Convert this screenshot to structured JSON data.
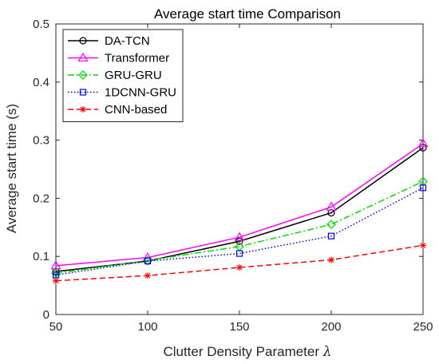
{
  "chart_data": {
    "type": "line",
    "title": "Average start time Comparison",
    "xlabel": "Clutter Density Parameter",
    "xlabel_symbol": "λ",
    "ylabel": "Average start time (s)",
    "x": [
      50,
      100,
      150,
      200,
      250
    ],
    "xlim": [
      50,
      250
    ],
    "ylim": [
      0,
      0.5
    ],
    "xticks": [
      "50",
      "100",
      "150",
      "200",
      "250"
    ],
    "yticks": [
      "0",
      "0.1",
      "0.2",
      "0.3",
      "0.4",
      "0.5"
    ],
    "grid": false,
    "legend_position": "top-left",
    "series": [
      {
        "name": "DA-TCN",
        "values": [
          0.074,
          0.092,
          0.126,
          0.175,
          0.287
        ],
        "color": "#000000",
        "marker": "circle",
        "line_style": "solid"
      },
      {
        "name": "Transformer",
        "values": [
          0.084,
          0.098,
          0.133,
          0.185,
          0.294
        ],
        "color": "#ff00ff",
        "marker": "triangle",
        "line_style": "solid"
      },
      {
        "name": "GRU-GRU",
        "values": [
          0.071,
          0.093,
          0.117,
          0.155,
          0.229
        ],
        "color": "#00dd00",
        "marker": "diamond",
        "line_style": "dash-dot"
      },
      {
        "name": "1DCNN-GRU",
        "values": [
          0.068,
          0.092,
          0.105,
          0.135,
          0.218
        ],
        "color": "#0000ff",
        "marker": "square",
        "line_style": "dotted"
      },
      {
        "name": "CNN-based",
        "values": [
          0.058,
          0.067,
          0.081,
          0.094,
          0.119
        ],
        "color": "#ff0000",
        "marker": "star",
        "line_style": "dashed"
      }
    ]
  }
}
